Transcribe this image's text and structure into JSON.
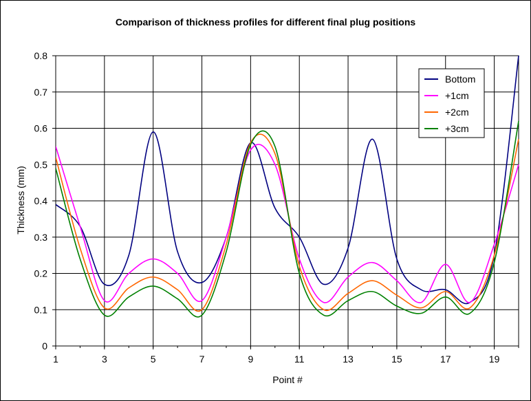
{
  "chart_data": {
    "type": "line",
    "title": "Comparison of thickness profiles for different final plug positions",
    "xlabel": "Point #",
    "ylabel": "Thickness (mm)",
    "xlim": [
      1,
      20
    ],
    "ylim": [
      0,
      0.8
    ],
    "x_ticks": [
      1,
      3,
      5,
      7,
      9,
      11,
      13,
      15,
      17,
      19
    ],
    "y_ticks": [
      0,
      0.1,
      0.2,
      0.3,
      0.4,
      0.5,
      0.6,
      0.7,
      0.8
    ],
    "grid": true,
    "legend_position": "top-right",
    "x": [
      1,
      2,
      3,
      4,
      5,
      6,
      7,
      8,
      9,
      10,
      11,
      12,
      13,
      14,
      15,
      16,
      17,
      18,
      19,
      20
    ],
    "series": [
      {
        "name": "Bottom",
        "color": "#000080",
        "values": [
          0.39,
          0.33,
          0.17,
          0.25,
          0.59,
          0.26,
          0.175,
          0.3,
          0.56,
          0.38,
          0.3,
          0.17,
          0.27,
          0.57,
          0.24,
          0.155,
          0.155,
          0.12,
          0.25,
          0.8
        ]
      },
      {
        "name": "+1cm",
        "color": "#ff00ff",
        "values": [
          0.55,
          0.33,
          0.125,
          0.2,
          0.24,
          0.2,
          0.125,
          0.3,
          0.54,
          0.5,
          0.24,
          0.12,
          0.19,
          0.23,
          0.18,
          0.12,
          0.225,
          0.12,
          0.28,
          0.5
        ]
      },
      {
        "name": "+2cm",
        "color": "#ff6600",
        "values": [
          0.52,
          0.27,
          0.105,
          0.16,
          0.19,
          0.155,
          0.1,
          0.28,
          0.56,
          0.53,
          0.22,
          0.1,
          0.145,
          0.18,
          0.14,
          0.105,
          0.15,
          0.105,
          0.25,
          0.57
        ]
      },
      {
        "name": "+3cm",
        "color": "#008000",
        "values": [
          0.49,
          0.24,
          0.085,
          0.135,
          0.165,
          0.13,
          0.085,
          0.26,
          0.555,
          0.55,
          0.2,
          0.085,
          0.125,
          0.15,
          0.11,
          0.09,
          0.135,
          0.09,
          0.23,
          0.62
        ]
      }
    ]
  }
}
